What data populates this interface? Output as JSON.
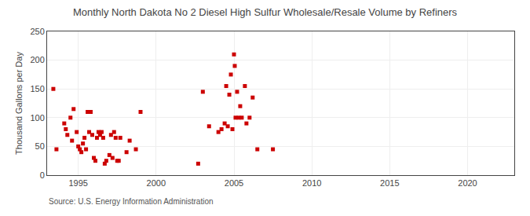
{
  "chart_data": {
    "type": "scatter",
    "title": "Monthly North Dakota No 2 Diesel High Sulfur Wholesale/Resale Volume by Refiners",
    "ylabel": "Thousand Gallons per Day",
    "annotation": "Source: U.S. Energy Information Administration",
    "color": "#cc0000",
    "marker": "square",
    "grid": true,
    "xlim": [
      1993,
      2023
    ],
    "ylim": [
      0,
      250
    ],
    "xticks": [
      1995,
      2000,
      2005,
      2010,
      2015,
      2020
    ],
    "yticks": [
      0,
      50,
      100,
      150,
      200,
      250
    ],
    "x": [
      1993.4,
      1993.6,
      1994.1,
      1994.2,
      1994.3,
      1994.5,
      1994.6,
      1994.7,
      1994.9,
      1995.0,
      1995.1,
      1995.2,
      1995.3,
      1995.4,
      1995.5,
      1995.6,
      1995.7,
      1995.8,
      1995.9,
      1996.0,
      1996.1,
      1996.2,
      1996.3,
      1996.4,
      1996.5,
      1996.6,
      1996.7,
      1996.8,
      1997.0,
      1997.1,
      1997.2,
      1997.3,
      1997.4,
      1997.5,
      1997.6,
      1997.7,
      1998.1,
      1998.3,
      1998.7,
      1999.0,
      2002.7,
      2003.0,
      2003.4,
      2004.0,
      2004.2,
      2004.4,
      2004.5,
      2004.6,
      2004.7,
      2004.8,
      2004.9,
      2005.0,
      2005.05,
      2005.1,
      2005.2,
      2005.3,
      2005.4,
      2005.5,
      2005.7,
      2005.8,
      2006.0,
      2006.2,
      2006.5,
      2007.5
    ],
    "values": [
      150,
      45,
      90,
      80,
      70,
      100,
      60,
      115,
      75,
      50,
      45,
      40,
      55,
      65,
      45,
      110,
      75,
      110,
      70,
      30,
      25,
      65,
      75,
      70,
      75,
      65,
      20,
      25,
      35,
      70,
      30,
      75,
      65,
      25,
      25,
      65,
      40,
      60,
      45,
      110,
      20,
      145,
      85,
      75,
      80,
      90,
      155,
      85,
      140,
      175,
      80,
      210,
      190,
      100,
      145,
      100,
      120,
      100,
      155,
      90,
      100,
      135,
      45,
      45
    ]
  }
}
